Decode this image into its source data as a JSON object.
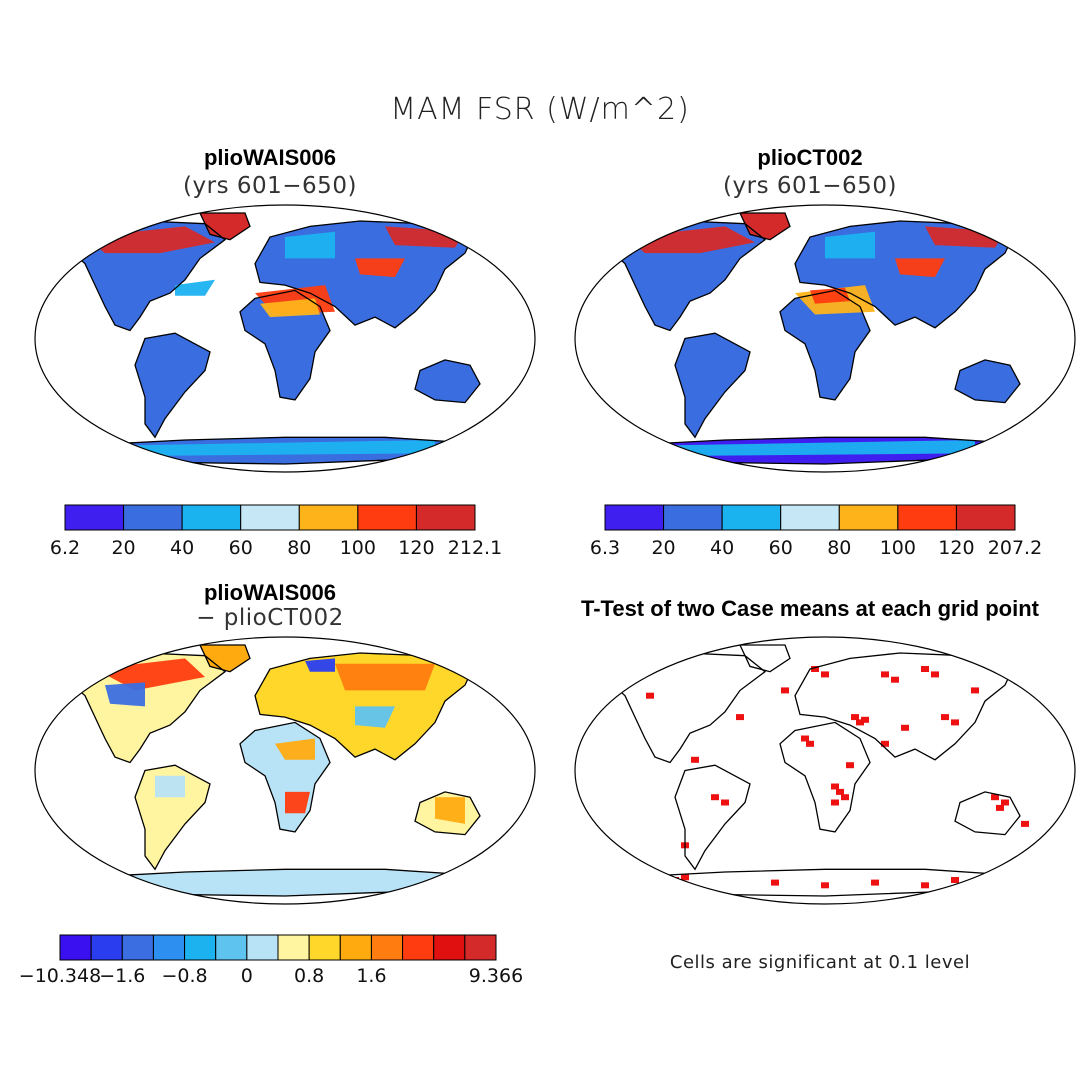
{
  "title": "MAM FSR (W/m^2)",
  "panels": [
    {
      "id": "p1",
      "title": "plioWAIS006",
      "subtitle": "(yrs 601−650)"
    },
    {
      "id": "p2",
      "title": "plioCT002",
      "subtitle": "(yrs 601−650)"
    },
    {
      "id": "p3",
      "title": "plioWAIS006",
      "subtitle": "− plioCT002"
    },
    {
      "id": "p4",
      "title": "T-Test of two Case means at each grid point",
      "subtitle": ""
    }
  ],
  "colorbars": {
    "cb1": {
      "colors": [
        "#3f1ff0",
        "#3a6ee0",
        "#1bb2f0",
        "#c6e8f6",
        "#ffb31a",
        "#ff3c0f",
        "#d42a2a"
      ],
      "labels": [
        "6.2",
        "20",
        "40",
        "60",
        "80",
        "100",
        "120",
        "212.1"
      ]
    },
    "cb2": {
      "colors": [
        "#3f1ff0",
        "#3a6ee0",
        "#1bb2f0",
        "#c6e8f6",
        "#ffb31a",
        "#ff3c0f",
        "#d42a2a"
      ],
      "labels": [
        "6.3",
        "20",
        "40",
        "60",
        "80",
        "100",
        "120",
        "207.2"
      ]
    },
    "cb3": {
      "colors": [
        "#3a10f0",
        "#2a3ef0",
        "#3b6ee0",
        "#2d8ff0",
        "#1cb2f0",
        "#5fc3f0",
        "#b8e2f6",
        "#fff5a0",
        "#ffd72a",
        "#ffab10",
        "#ff7d10",
        "#ff3c0f",
        "#e01010",
        "#d42a2a"
      ],
      "labels": [
        {
          "text": "−10.348",
          "at": 0
        },
        {
          "text": "−1.6",
          "at": 2
        },
        {
          "text": "−0.8",
          "at": 4
        },
        {
          "text": "0",
          "at": 6
        },
        {
          "text": "0.8",
          "at": 8
        },
        {
          "text": "1.6",
          "at": 10
        },
        {
          "text": "9.366",
          "at": 14
        }
      ]
    }
  },
  "note": "Cells are significant at 0.1 level"
}
